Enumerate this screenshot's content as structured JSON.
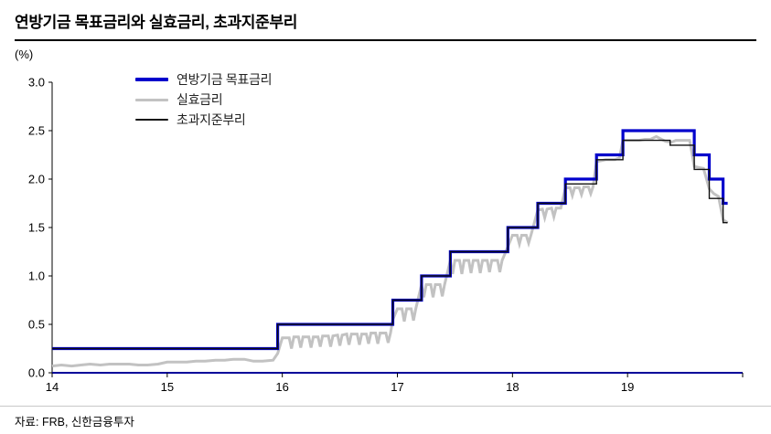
{
  "title": "연방기금 목표금리와 실효금리, 초과지준부리",
  "footer": {
    "source": "자료: FRB, 신한금융투자"
  },
  "chart_data": {
    "type": "line",
    "title": "연방기금 목표금리와 실효금리, 초과지준부리",
    "xlabel": "",
    "ylabel": "(%)",
    "xlim": [
      14,
      20
    ],
    "ylim": [
      0,
      3.0
    ],
    "xticks": [
      14,
      15,
      16,
      17,
      18,
      19
    ],
    "yticks": [
      0.0,
      0.5,
      1.0,
      1.5,
      2.0,
      2.5,
      3.0
    ],
    "grid": false,
    "legend_position": "inside-top-left",
    "axis_color": "#000099",
    "series": [
      {
        "id": "target",
        "name": "연방기금 목표금리",
        "color": "#0000cc",
        "width": 3.2,
        "z": 1,
        "points": [
          [
            14.0,
            0.25
          ],
          [
            15.96,
            0.25
          ],
          [
            15.96,
            0.5
          ],
          [
            16.96,
            0.5
          ],
          [
            16.96,
            0.75
          ],
          [
            17.21,
            0.75
          ],
          [
            17.21,
            1.0
          ],
          [
            17.46,
            1.0
          ],
          [
            17.46,
            1.25
          ],
          [
            17.96,
            1.25
          ],
          [
            17.96,
            1.5
          ],
          [
            18.22,
            1.5
          ],
          [
            18.22,
            1.75
          ],
          [
            18.46,
            1.75
          ],
          [
            18.46,
            2.0
          ],
          [
            18.73,
            2.0
          ],
          [
            18.73,
            2.25
          ],
          [
            18.96,
            2.25
          ],
          [
            18.96,
            2.5
          ],
          [
            19.58,
            2.5
          ],
          [
            19.58,
            2.25
          ],
          [
            19.71,
            2.25
          ],
          [
            19.71,
            2.0
          ],
          [
            19.83,
            2.0
          ],
          [
            19.83,
            1.75
          ],
          [
            19.87,
            1.75
          ]
        ]
      },
      {
        "id": "effective",
        "name": "실효금리",
        "color": "#c2c2c2",
        "width": 3,
        "z": 0,
        "points": [
          [
            14.0,
            0.07
          ],
          [
            14.08,
            0.08
          ],
          [
            14.17,
            0.07
          ],
          [
            14.25,
            0.08
          ],
          [
            14.33,
            0.09
          ],
          [
            14.42,
            0.08
          ],
          [
            14.5,
            0.09
          ],
          [
            14.58,
            0.09
          ],
          [
            14.67,
            0.09
          ],
          [
            14.75,
            0.08
          ],
          [
            14.83,
            0.08
          ],
          [
            14.92,
            0.09
          ],
          [
            15.0,
            0.11
          ],
          [
            15.08,
            0.11
          ],
          [
            15.17,
            0.11
          ],
          [
            15.25,
            0.12
          ],
          [
            15.33,
            0.12
          ],
          [
            15.42,
            0.13
          ],
          [
            15.5,
            0.13
          ],
          [
            15.58,
            0.14
          ],
          [
            15.67,
            0.14
          ],
          [
            15.75,
            0.12
          ],
          [
            15.83,
            0.12
          ],
          [
            15.92,
            0.13
          ],
          [
            15.96,
            0.2
          ],
          [
            16.0,
            0.36
          ],
          [
            16.06,
            0.36
          ],
          [
            16.08,
            0.25
          ],
          [
            16.1,
            0.37
          ],
          [
            16.14,
            0.37
          ],
          [
            16.16,
            0.26
          ],
          [
            16.18,
            0.37
          ],
          [
            16.23,
            0.37
          ],
          [
            16.25,
            0.26
          ],
          [
            16.27,
            0.37
          ],
          [
            16.31,
            0.37
          ],
          [
            16.33,
            0.27
          ],
          [
            16.35,
            0.38
          ],
          [
            16.4,
            0.38
          ],
          [
            16.42,
            0.27
          ],
          [
            16.44,
            0.38
          ],
          [
            16.48,
            0.39
          ],
          [
            16.5,
            0.28
          ],
          [
            16.52,
            0.39
          ],
          [
            16.56,
            0.4
          ],
          [
            16.58,
            0.29
          ],
          [
            16.6,
            0.4
          ],
          [
            16.65,
            0.4
          ],
          [
            16.67,
            0.29
          ],
          [
            16.69,
            0.4
          ],
          [
            16.73,
            0.4
          ],
          [
            16.75,
            0.3
          ],
          [
            16.77,
            0.41
          ],
          [
            16.81,
            0.41
          ],
          [
            16.83,
            0.3
          ],
          [
            16.85,
            0.41
          ],
          [
            16.9,
            0.41
          ],
          [
            16.92,
            0.31
          ],
          [
            16.94,
            0.41
          ],
          [
            16.96,
            0.55
          ],
          [
            17.0,
            0.66
          ],
          [
            17.04,
            0.66
          ],
          [
            17.06,
            0.53
          ],
          [
            17.08,
            0.66
          ],
          [
            17.12,
            0.66
          ],
          [
            17.14,
            0.54
          ],
          [
            17.16,
            0.66
          ],
          [
            17.21,
            0.91
          ],
          [
            17.23,
            0.78
          ],
          [
            17.25,
            0.91
          ],
          [
            17.29,
            0.91
          ],
          [
            17.31,
            0.78
          ],
          [
            17.33,
            0.91
          ],
          [
            17.37,
            0.91
          ],
          [
            17.39,
            0.79
          ],
          [
            17.41,
            0.91
          ],
          [
            17.46,
            1.16
          ],
          [
            17.48,
            1.02
          ],
          [
            17.5,
            1.16
          ],
          [
            17.54,
            1.16
          ],
          [
            17.56,
            1.02
          ],
          [
            17.58,
            1.16
          ],
          [
            17.62,
            1.16
          ],
          [
            17.64,
            1.03
          ],
          [
            17.66,
            1.16
          ],
          [
            17.7,
            1.16
          ],
          [
            17.72,
            1.03
          ],
          [
            17.74,
            1.16
          ],
          [
            17.78,
            1.16
          ],
          [
            17.8,
            1.04
          ],
          [
            17.82,
            1.16
          ],
          [
            17.87,
            1.16
          ],
          [
            17.89,
            1.04
          ],
          [
            17.91,
            1.16
          ],
          [
            17.96,
            1.3
          ],
          [
            18.0,
            1.42
          ],
          [
            18.04,
            1.42
          ],
          [
            18.06,
            1.33
          ],
          [
            18.08,
            1.42
          ],
          [
            18.12,
            1.42
          ],
          [
            18.14,
            1.34
          ],
          [
            18.16,
            1.42
          ],
          [
            18.22,
            1.68
          ],
          [
            18.26,
            1.69
          ],
          [
            18.28,
            1.6
          ],
          [
            18.3,
            1.69
          ],
          [
            18.34,
            1.7
          ],
          [
            18.36,
            1.61
          ],
          [
            18.38,
            1.7
          ],
          [
            18.42,
            1.7
          ],
          [
            18.46,
            1.91
          ],
          [
            18.5,
            1.91
          ],
          [
            18.52,
            1.83
          ],
          [
            18.54,
            1.91
          ],
          [
            18.58,
            1.91
          ],
          [
            18.6,
            1.84
          ],
          [
            18.62,
            1.92
          ],
          [
            18.66,
            1.92
          ],
          [
            18.68,
            1.85
          ],
          [
            18.7,
            1.92
          ],
          [
            18.73,
            2.18
          ],
          [
            18.77,
            2.19
          ],
          [
            18.81,
            2.2
          ],
          [
            18.85,
            2.2
          ],
          [
            18.89,
            2.2
          ],
          [
            18.93,
            2.22
          ],
          [
            18.96,
            2.4
          ],
          [
            19.0,
            2.4
          ],
          [
            19.05,
            2.4
          ],
          [
            19.1,
            2.4
          ],
          [
            19.15,
            2.41
          ],
          [
            19.2,
            2.41
          ],
          [
            19.25,
            2.44
          ],
          [
            19.28,
            2.42
          ],
          [
            19.33,
            2.39
          ],
          [
            19.38,
            2.38
          ],
          [
            19.42,
            2.4
          ],
          [
            19.46,
            2.4
          ],
          [
            19.5,
            2.4
          ],
          [
            19.54,
            2.4
          ],
          [
            19.58,
            2.13
          ],
          [
            19.62,
            2.12
          ],
          [
            19.66,
            2.11
          ],
          [
            19.71,
            1.9
          ],
          [
            19.75,
            1.85
          ],
          [
            19.79,
            1.82
          ],
          [
            19.83,
            1.58
          ],
          [
            19.87,
            1.55
          ]
        ]
      },
      {
        "id": "ioer",
        "name": "초과지준부리",
        "color": "#111111",
        "width": 1.4,
        "z": 2,
        "points": [
          [
            14.0,
            0.25
          ],
          [
            15.96,
            0.25
          ],
          [
            15.96,
            0.5
          ],
          [
            16.96,
            0.5
          ],
          [
            16.96,
            0.75
          ],
          [
            17.21,
            0.75
          ],
          [
            17.21,
            1.0
          ],
          [
            17.46,
            1.0
          ],
          [
            17.46,
            1.25
          ],
          [
            17.96,
            1.25
          ],
          [
            17.96,
            1.5
          ],
          [
            18.22,
            1.5
          ],
          [
            18.22,
            1.75
          ],
          [
            18.46,
            1.75
          ],
          [
            18.46,
            1.95
          ],
          [
            18.73,
            1.95
          ],
          [
            18.73,
            2.2
          ],
          [
            18.96,
            2.2
          ],
          [
            18.96,
            2.4
          ],
          [
            19.37,
            2.4
          ],
          [
            19.37,
            2.35
          ],
          [
            19.58,
            2.35
          ],
          [
            19.58,
            2.1
          ],
          [
            19.71,
            2.1
          ],
          [
            19.71,
            1.8
          ],
          [
            19.83,
            1.8
          ],
          [
            19.83,
            1.55
          ],
          [
            19.87,
            1.55
          ]
        ]
      }
    ]
  }
}
